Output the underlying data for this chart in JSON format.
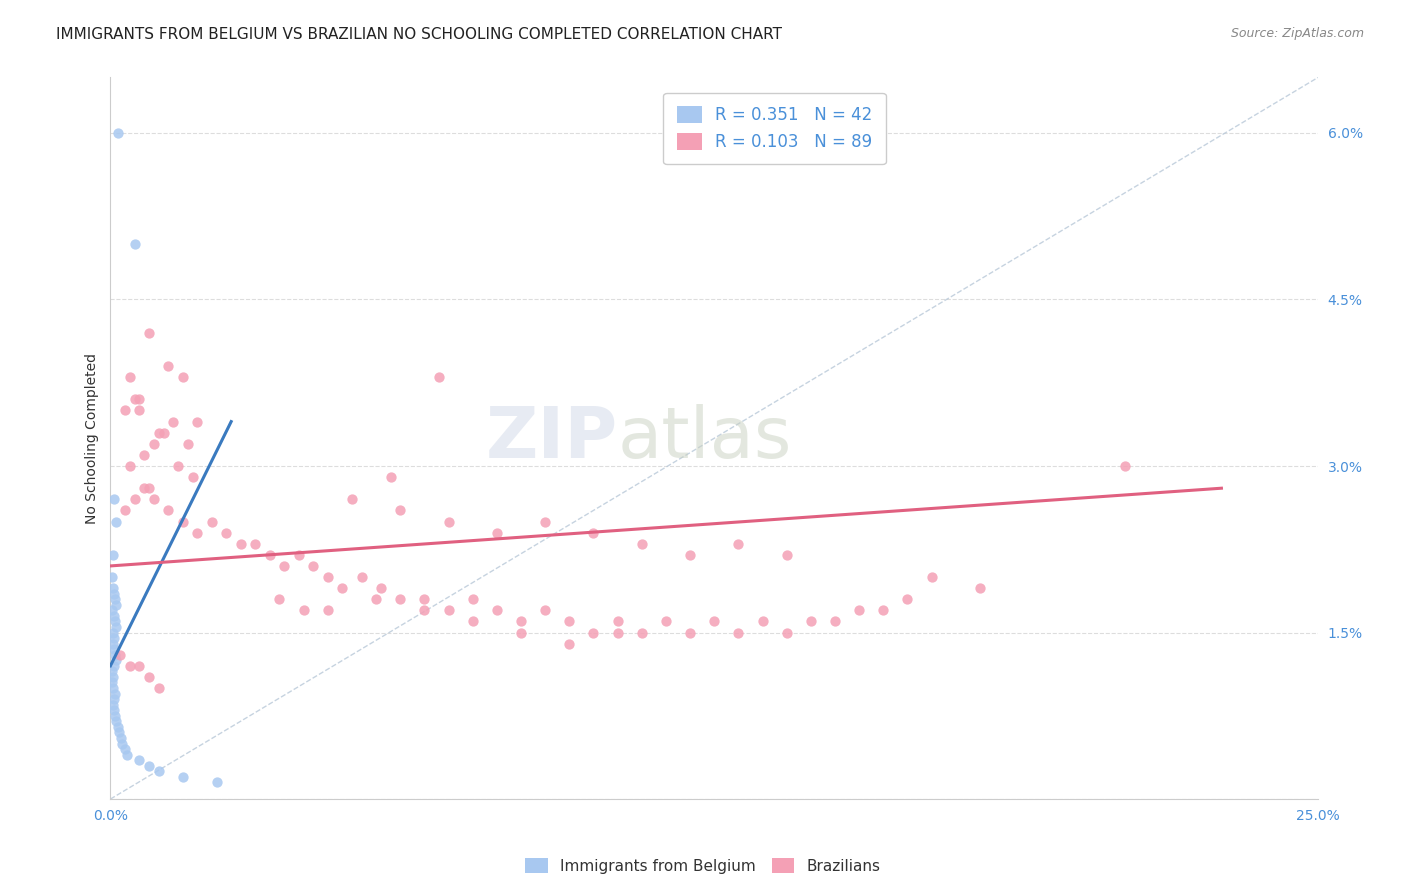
{
  "title": "IMMIGRANTS FROM BELGIUM VS BRAZILIAN NO SCHOOLING COMPLETED CORRELATION CHART",
  "source": "Source: ZipAtlas.com",
  "ylabel": "No Schooling Completed",
  "xlim": [
    0.0,
    25.0
  ],
  "ylim": [
    0.0,
    6.5
  ],
  "legend_r1": "R = 0.351",
  "legend_n1": "N = 42",
  "legend_r2": "R = 0.103",
  "legend_n2": "N = 89",
  "color_belgium": "#a8c8f0",
  "color_brazil": "#f4a0b5",
  "color_trendline_belgium": "#3a7abf",
  "color_trendline_brazil": "#e06080",
  "color_diagonal": "#b8c8d8",
  "background_color": "#ffffff",
  "title_fontsize": 11,
  "axis_label_fontsize": 10,
  "tick_fontsize": 10,
  "legend_fontsize": 12,
  "marker_size": 55,
  "belgium_x": [
    0.15,
    0.08,
    0.12,
    0.05,
    0.03,
    0.06,
    0.08,
    0.1,
    0.12,
    0.04,
    0.07,
    0.09,
    0.11,
    0.06,
    0.08,
    0.05,
    0.07,
    0.1,
    0.12,
    0.08,
    0.04,
    0.06,
    0.03,
    0.05,
    0.09,
    0.07,
    0.06,
    0.08,
    0.1,
    0.12,
    0.15,
    0.18,
    0.22,
    0.25,
    0.3,
    0.35,
    0.5,
    0.6,
    0.8,
    1.0,
    1.5,
    2.2
  ],
  "belgium_y": [
    6.0,
    2.7,
    2.5,
    2.2,
    2.0,
    1.9,
    1.85,
    1.8,
    1.75,
    1.7,
    1.65,
    1.6,
    1.55,
    1.5,
    1.45,
    1.4,
    1.35,
    1.3,
    1.25,
    1.2,
    1.15,
    1.1,
    1.05,
    1.0,
    0.95,
    0.9,
    0.85,
    0.8,
    0.75,
    0.7,
    0.65,
    0.6,
    0.55,
    0.5,
    0.45,
    0.4,
    5.0,
    0.35,
    0.3,
    0.25,
    0.2,
    0.15
  ],
  "brazil_x": [
    0.4,
    0.8,
    1.2,
    0.6,
    0.3,
    1.5,
    1.8,
    0.5,
    0.9,
    1.1,
    0.7,
    1.3,
    1.6,
    0.4,
    0.6,
    1.0,
    1.4,
    1.7,
    0.8,
    0.5,
    0.3,
    0.7,
    0.9,
    1.2,
    1.5,
    1.8,
    2.1,
    2.4,
    2.7,
    3.0,
    3.3,
    3.6,
    3.9,
    4.2,
    4.5,
    4.8,
    5.2,
    5.6,
    6.0,
    6.5,
    7.0,
    7.5,
    8.0,
    8.5,
    9.0,
    9.5,
    10.0,
    10.5,
    11.0,
    11.5,
    12.0,
    12.5,
    13.0,
    13.5,
    14.0,
    14.5,
    15.0,
    15.5,
    16.0,
    5.0,
    6.0,
    7.0,
    8.0,
    9.0,
    10.0,
    11.0,
    12.0,
    13.0,
    14.0,
    3.5,
    4.0,
    5.5,
    6.5,
    7.5,
    8.5,
    9.5,
    10.5,
    21.0,
    0.2,
    0.4,
    0.6,
    0.8,
    1.0,
    18.0,
    17.0,
    16.5,
    4.5,
    5.8,
    6.8
  ],
  "brazil_y": [
    3.8,
    4.2,
    3.9,
    3.6,
    3.5,
    3.8,
    3.4,
    3.6,
    3.2,
    3.3,
    3.1,
    3.4,
    3.2,
    3.0,
    3.5,
    3.3,
    3.0,
    2.9,
    2.8,
    2.7,
    2.6,
    2.8,
    2.7,
    2.6,
    2.5,
    2.4,
    2.5,
    2.4,
    2.3,
    2.3,
    2.2,
    2.1,
    2.2,
    2.1,
    2.0,
    1.9,
    2.0,
    1.9,
    1.8,
    1.8,
    1.7,
    1.8,
    1.7,
    1.6,
    1.7,
    1.6,
    1.5,
    1.6,
    1.5,
    1.6,
    1.5,
    1.6,
    1.5,
    1.6,
    1.5,
    1.6,
    1.6,
    1.7,
    1.7,
    2.7,
    2.6,
    2.5,
    2.4,
    2.5,
    2.4,
    2.3,
    2.2,
    2.3,
    2.2,
    1.8,
    1.7,
    1.8,
    1.7,
    1.6,
    1.5,
    1.4,
    1.5,
    3.0,
    1.3,
    1.2,
    1.2,
    1.1,
    1.0,
    1.9,
    2.0,
    1.8,
    1.7,
    2.9,
    3.8
  ],
  "bel_trend_x0": 0.0,
  "bel_trend_x1": 2.5,
  "bel_trend_y0": 1.2,
  "bel_trend_y1": 3.4,
  "bra_trend_x0": 0.0,
  "bra_trend_x1": 23.0,
  "bra_trend_y0": 2.1,
  "bra_trend_y1": 2.8
}
